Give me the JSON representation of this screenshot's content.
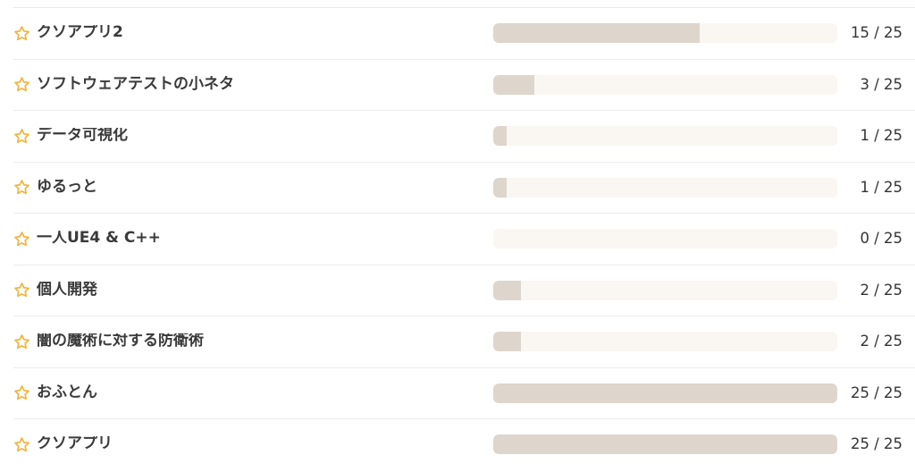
{
  "colors": {
    "bar_fill": "#ded5cc",
    "bar_track": "#faf6f2",
    "star": "#f1b53e",
    "divider": "#ebebeb",
    "title_text": "#3a3a3a",
    "count_text": "#333333"
  },
  "list": {
    "max": 25,
    "items": [
      {
        "title": "クソアプリ2",
        "count": 15,
        "count_label": "15 / 25"
      },
      {
        "title": "ソフトウェアテストの小ネタ",
        "count": 3,
        "count_label": "3 / 25"
      },
      {
        "title": "データ可視化",
        "count": 1,
        "count_label": "1 / 25"
      },
      {
        "title": "ゆるっと",
        "count": 1,
        "count_label": "1 / 25"
      },
      {
        "title": "一人UE4 & C++",
        "count": 0,
        "count_label": "0 / 25"
      },
      {
        "title": "個人開発",
        "count": 2,
        "count_label": "2 / 25"
      },
      {
        "title": "闇の魔術に対する防衛術",
        "count": 2,
        "count_label": "2 / 25"
      },
      {
        "title": "おふとん",
        "count": 25,
        "count_label": "25 / 25"
      },
      {
        "title": "クソアプリ",
        "count": 25,
        "count_label": "25 / 25"
      }
    ]
  }
}
